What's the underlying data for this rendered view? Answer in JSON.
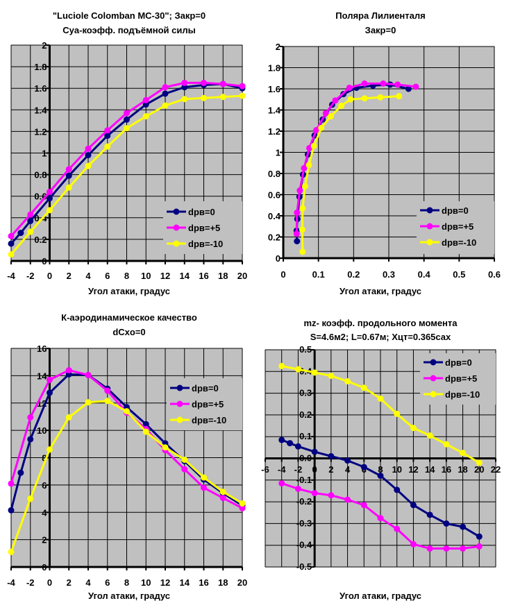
{
  "colors": {
    "plot_bg": "#c0c0c0",
    "grid": "#000000",
    "title_accent": "#0000ff"
  },
  "chart_data": [
    {
      "type": "line",
      "title": [
        "\"Luciole Colomban MC-30\"; Закр=0",
        "Cya-коэфф. подъёмной силы"
      ],
      "xlabel": "Угол атаки, градус",
      "ylabel": "",
      "xlim": [
        -4,
        20
      ],
      "ylim": [
        0,
        2
      ],
      "x_ticks": [
        "-4",
        "-2",
        "0",
        "2",
        "4",
        "6",
        "8",
        "10",
        "12",
        "14",
        "16",
        "18",
        "20"
      ],
      "y_ticks": [
        "0",
        "0.2",
        "0.4",
        "0.6",
        "0.8",
        "1",
        "1.2",
        "1.4",
        "1.6",
        "1.8",
        "2"
      ],
      "grid": true,
      "legend": "bottom-right",
      "series": [
        {
          "name": "dpв=0",
          "color": "#000080",
          "x": [
            -4,
            -3,
            -2,
            0,
            2,
            4,
            6,
            8,
            10,
            12,
            14,
            16,
            18,
            20
          ],
          "y": [
            0.16,
            0.26,
            0.37,
            0.58,
            0.79,
            0.98,
            1.16,
            1.31,
            1.45,
            1.55,
            1.61,
            1.63,
            1.64,
            1.6
          ]
        },
        {
          "name": "dpв=+5",
          "color": "#ff00ff",
          "x": [
            -4,
            -2,
            0,
            2,
            4,
            6,
            8,
            10,
            12,
            14,
            16,
            18,
            20
          ],
          "y": [
            0.23,
            0.43,
            0.64,
            0.85,
            1.04,
            1.21,
            1.37,
            1.49,
            1.61,
            1.65,
            1.65,
            1.64,
            1.62
          ]
        },
        {
          "name": "dpв=-10",
          "color": "#ffff00",
          "x": [
            -4,
            -2,
            0,
            2,
            4,
            6,
            8,
            10,
            12,
            14,
            16,
            18,
            20
          ],
          "y": [
            0.06,
            0.27,
            0.47,
            0.68,
            0.88,
            1.06,
            1.23,
            1.34,
            1.44,
            1.5,
            1.51,
            1.52,
            1.53
          ]
        }
      ]
    },
    {
      "type": "scatter",
      "title": [
        "Поляра Лилиенталя",
        "Закр=0"
      ],
      "xlabel": "Угол атаки, градус",
      "ylabel": "",
      "xlim": [
        0,
        0.6
      ],
      "ylim": [
        0,
        2
      ],
      "x_ticks": [
        "0",
        "0.1",
        "0.2",
        "0.3",
        "0.4",
        "0.5",
        "0.6"
      ],
      "y_ticks": [
        "0",
        "0.2",
        "0.4",
        "0.6",
        "0.8",
        "1",
        "1.2",
        "1.4",
        "1.6",
        "1.8",
        "2"
      ],
      "grid": true,
      "legend": "bottom-right",
      "series": [
        {
          "name": "dpв=0",
          "color": "#000080",
          "x": [
            0.039,
            0.038,
            0.04,
            0.046,
            0.056,
            0.07,
            0.089,
            0.112,
            0.139,
            0.171,
            0.208,
            0.255,
            0.304,
            0.356
          ],
          "y": [
            0.16,
            0.26,
            0.37,
            0.58,
            0.79,
            0.98,
            1.16,
            1.31,
            1.45,
            1.55,
            1.61,
            1.63,
            1.64,
            1.6
          ]
        },
        {
          "name": "dpв=+5",
          "color": "#ff00ff",
          "x": [
            0.038,
            0.039,
            0.047,
            0.059,
            0.074,
            0.094,
            0.121,
            0.148,
            0.188,
            0.231,
            0.284,
            0.325,
            0.377
          ],
          "y": [
            0.23,
            0.43,
            0.64,
            0.85,
            1.04,
            1.21,
            1.37,
            1.49,
            1.61,
            1.65,
            1.65,
            1.64,
            1.62
          ]
        },
        {
          "name": "dpв=-10",
          "color": "#ffff00",
          "x": [
            0.055,
            0.054,
            0.055,
            0.062,
            0.073,
            0.087,
            0.108,
            0.135,
            0.165,
            0.191,
            0.231,
            0.276,
            0.329
          ],
          "y": [
            0.06,
            0.27,
            0.47,
            0.68,
            0.88,
            1.06,
            1.23,
            1.34,
            1.44,
            1.5,
            1.51,
            1.52,
            1.53
          ]
        }
      ]
    },
    {
      "type": "line",
      "title": [
        "К-аэродинамическое качество",
        "dCxo=0"
      ],
      "xlabel": "Угол атаки, градус",
      "ylabel": "",
      "xlim": [
        -4,
        20
      ],
      "ylim": [
        0,
        16
      ],
      "x_ticks": [
        "-4",
        "-2",
        "0",
        "2",
        "4",
        "6",
        "8",
        "10",
        "12",
        "14",
        "16",
        "18",
        "20"
      ],
      "y_ticks": [
        "0",
        "2",
        "4",
        "6",
        "8",
        "10",
        "12",
        "14",
        "16"
      ],
      "grid": true,
      "legend": "top-right",
      "series": [
        {
          "name": "dpв=0",
          "color": "#000080",
          "x": [
            -4,
            -3,
            -2,
            0,
            2,
            4,
            6,
            8,
            10,
            12,
            14,
            16,
            18,
            20
          ],
          "y": [
            4.15,
            6.9,
            9.35,
            12.75,
            14.1,
            14.05,
            13.05,
            11.7,
            10.45,
            9.05,
            7.75,
            6.4,
            5.4,
            4.5
          ]
        },
        {
          "name": "dpв=+5",
          "color": "#ff00ff",
          "x": [
            -4,
            -2,
            0,
            2,
            4,
            6,
            8,
            10,
            12,
            14,
            16,
            18,
            20
          ],
          "y": [
            6.1,
            10.95,
            13.7,
            14.4,
            14.05,
            12.9,
            11.3,
            10.1,
            8.55,
            7.15,
            5.8,
            5.05,
            4.3
          ]
        },
        {
          "name": "dpв=-10",
          "color": "#ffff00",
          "x": [
            -4,
            -2,
            0,
            2,
            4,
            6,
            8,
            10,
            12,
            14,
            16,
            18,
            20
          ],
          "y": [
            1.1,
            5.0,
            8.6,
            10.95,
            12.05,
            12.15,
            11.4,
            9.9,
            8.75,
            7.85,
            6.55,
            5.5,
            4.65
          ]
        }
      ]
    },
    {
      "type": "line",
      "title": [
        "mz- коэфф. продольного момента",
        "S=4.6м2; L=0.67м; Xцт=0.365сах"
      ],
      "xlabel": "Угол атаки, градус",
      "ylabel": "",
      "xlim": [
        -6,
        22
      ],
      "ylim": [
        -0.5,
        0.5
      ],
      "x_ticks": [
        "-6",
        "-4",
        "-2",
        "0",
        "2",
        "4",
        "6",
        "8",
        "10",
        "12",
        "14",
        "16",
        "18",
        "20",
        "22"
      ],
      "y_ticks": [
        "-0.5",
        "-0.4",
        "-0.3",
        "-0.2",
        "-0.1",
        "0.0",
        "0.1",
        "0.2",
        "0.3",
        "0.4",
        "0.5"
      ],
      "grid": true,
      "legend": "top-right",
      "series": [
        {
          "name": "dpв=0",
          "color": "#000080",
          "x": [
            -4,
            -3,
            -2,
            0,
            2,
            4,
            6,
            8,
            10,
            12,
            14,
            16,
            18,
            20
          ],
          "y": [
            0.085,
            0.07,
            0.055,
            0.03,
            0.01,
            -0.01,
            -0.04,
            -0.08,
            -0.145,
            -0.215,
            -0.26,
            -0.3,
            -0.315,
            -0.36
          ]
        },
        {
          "name": "dpв=+5",
          "color": "#ff00ff",
          "x": [
            -4,
            -2,
            0,
            2,
            4,
            6,
            8,
            10,
            12,
            14,
            16,
            18,
            20
          ],
          "y": [
            -0.115,
            -0.14,
            -0.16,
            -0.17,
            -0.19,
            -0.215,
            -0.275,
            -0.325,
            -0.395,
            -0.415,
            -0.415,
            -0.415,
            -0.405
          ]
        },
        {
          "name": "dpв=-10",
          "color": "#ffff00",
          "x": [
            -4,
            -2,
            0,
            2,
            4,
            6,
            8,
            10,
            12,
            14,
            16,
            18,
            20
          ],
          "y": [
            0.425,
            0.41,
            0.395,
            0.38,
            0.355,
            0.325,
            0.275,
            0.205,
            0.14,
            0.105,
            0.065,
            0.025,
            -0.02
          ]
        }
      ]
    }
  ]
}
